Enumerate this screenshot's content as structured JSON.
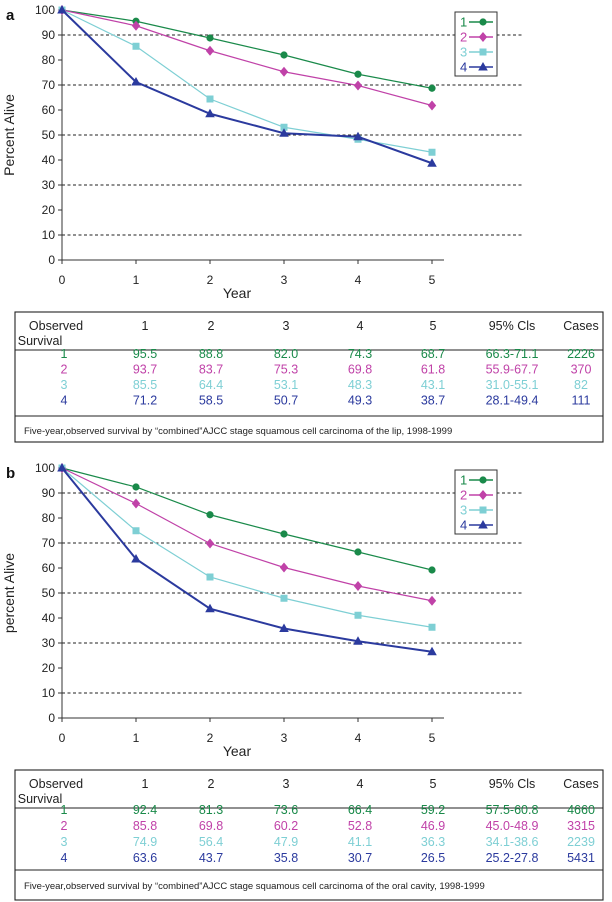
{
  "chart_data": [
    {
      "panel": "a",
      "type": "line",
      "x": [
        0,
        1,
        2,
        3,
        4,
        5
      ],
      "xlabel": "Year",
      "ylabel": "Percent Alive",
      "ylim": [
        0,
        100
      ],
      "yticks": [
        0,
        10,
        20,
        30,
        40,
        50,
        60,
        70,
        80,
        90,
        100
      ],
      "xticks": [
        0,
        1,
        2,
        3,
        4,
        5
      ],
      "dashed_gridlines": [
        10,
        30,
        50,
        70,
        90
      ],
      "legend_position": "top-right",
      "series": [
        {
          "name": "1",
          "color": "#1a8a4a",
          "marker": "circle",
          "values": [
            100,
            95.5,
            88.8,
            82.0,
            74.3,
            68.7
          ]
        },
        {
          "name": "2",
          "color": "#c042a8",
          "marker": "diamond",
          "values": [
            100,
            93.7,
            83.7,
            75.3,
            69.8,
            61.8
          ]
        },
        {
          "name": "3",
          "color": "#7ecfd4",
          "marker": "square",
          "values": [
            100,
            85.5,
            64.4,
            53.1,
            48.3,
            43.1
          ]
        },
        {
          "name": "4",
          "color": "#2b3a9e",
          "marker": "triangle",
          "values": [
            100,
            71.2,
            58.5,
            50.7,
            49.3,
            38.7
          ]
        }
      ],
      "table": {
        "header": [
          "Observed",
          "1",
          "2",
          "3",
          "4",
          "5",
          "95% Cls",
          "Cases"
        ],
        "header_line2": "Survival",
        "rows": [
          {
            "stage": "1",
            "values": [
              "95.5",
              "88.8",
              "82.0",
              "74.3",
              "68.7"
            ],
            "ci": "66.3-71.1",
            "cases": "2226"
          },
          {
            "stage": "2",
            "values": [
              "93.7",
              "83.7",
              "75.3",
              "69.8",
              "61.8"
            ],
            "ci": "55.9-67.7",
            "cases": "370"
          },
          {
            "stage": "3",
            "values": [
              "85.5",
              "64.4",
              "53.1",
              "48.3",
              "43.1"
            ],
            "ci": "31.0-55.1",
            "cases": "82"
          },
          {
            "stage": "4",
            "values": [
              "71.2",
              "58.5",
              "50.7",
              "49.3",
              "38.7"
            ],
            "ci": "28.1-49.4",
            "cases": "111"
          }
        ],
        "caption": "Five-year,observed survival by “combined”AJCC stage squamous cell carcinoma of the lip, 1998-1999"
      }
    },
    {
      "panel": "b",
      "type": "line",
      "x": [
        0,
        1,
        2,
        3,
        4,
        5
      ],
      "xlabel": "Year",
      "ylabel": "percent Alive",
      "ylim": [
        0,
        100
      ],
      "yticks": [
        0,
        10,
        20,
        30,
        40,
        50,
        60,
        70,
        80,
        90,
        100
      ],
      "xticks": [
        0,
        1,
        2,
        3,
        4,
        5
      ],
      "dashed_gridlines": [
        10,
        30,
        50,
        70,
        90
      ],
      "legend_position": "top-right",
      "series": [
        {
          "name": "1",
          "color": "#1a8a4a",
          "marker": "circle",
          "values": [
            100,
            92.4,
            81.3,
            73.6,
            66.4,
            59.2
          ]
        },
        {
          "name": "2",
          "color": "#c042a8",
          "marker": "diamond",
          "values": [
            100,
            85.8,
            69.8,
            60.2,
            52.8,
            46.9
          ]
        },
        {
          "name": "3",
          "color": "#7ecfd4",
          "marker": "square",
          "values": [
            100,
            74.9,
            56.4,
            47.9,
            41.1,
            36.3
          ]
        },
        {
          "name": "4",
          "color": "#2b3a9e",
          "marker": "triangle",
          "values": [
            100,
            63.6,
            43.7,
            35.8,
            30.7,
            26.5
          ]
        }
      ],
      "table": {
        "header": [
          "Observed",
          "1",
          "2",
          "3",
          "4",
          "5",
          "95% Cls",
          "Cases"
        ],
        "header_line2": "Survival",
        "rows": [
          {
            "stage": "1",
            "values": [
              "92.4",
              "81.3",
              "73.6",
              "66.4",
              "59.2"
            ],
            "ci": "57.5-60.8",
            "cases": "4660"
          },
          {
            "stage": "2",
            "values": [
              "85.8",
              "69.8",
              "60.2",
              "52.8",
              "46.9"
            ],
            "ci": "45.0-48.9",
            "cases": "3315"
          },
          {
            "stage": "3",
            "values": [
              "74.9",
              "56.4",
              "47.9",
              "41.1",
              "36.3"
            ],
            "ci": "34.1-38.6",
            "cases": "2239"
          },
          {
            "stage": "4",
            "values": [
              "63.6",
              "43.7",
              "35.8",
              "30.7",
              "26.5"
            ],
            "ci": "25.2-27.8",
            "cases": "5431"
          }
        ],
        "caption": "Five-year,observed survival by “combined”AJCC stage squamous cell carcinoma of the oral cavity, 1998-1999"
      }
    }
  ]
}
